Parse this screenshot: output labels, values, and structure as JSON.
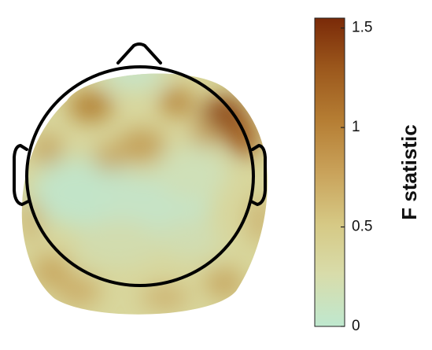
{
  "chart_data": {
    "type": "heatmap",
    "title": "",
    "colorbar": {
      "label": "F statistic",
      "range": [
        0,
        1.55
      ],
      "ticks": [
        {
          "value": 0,
          "label": "0"
        },
        {
          "value": 0.5,
          "label": "0.5"
        },
        {
          "value": 1,
          "label": "1"
        },
        {
          "value": 1.5,
          "label": "1.5"
        }
      ],
      "colormap": [
        "#bfe8cf",
        "#d8dcaa",
        "#d6c985",
        "#c9a25a",
        "#b57d33",
        "#9b571c",
        "#7a2a08"
      ]
    },
    "note_regions": [
      {
        "region": "frontal-left",
        "level": "medium-high"
      },
      {
        "region": "frontal-right",
        "level": "high"
      },
      {
        "region": "temporal-right",
        "level": "high"
      },
      {
        "region": "central",
        "level": "low"
      },
      {
        "region": "occipital",
        "level": "low-medium"
      }
    ]
  }
}
